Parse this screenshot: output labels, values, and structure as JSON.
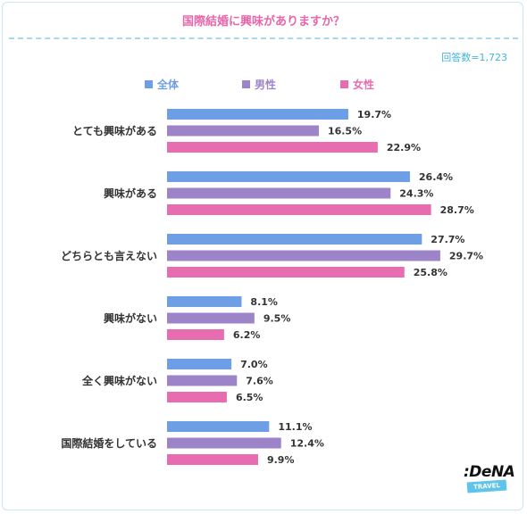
{
  "chart_data": {
    "type": "bar",
    "orientation": "horizontal",
    "title": "国際結婚に興味がありますか？",
    "note": "回答数=1,723",
    "categories": [
      "とても興味がある",
      "興味がある",
      "どちらとも言えない",
      "興味がない",
      "全く興味がない",
      "国際結婚をしている"
    ],
    "series": [
      {
        "name": "全体",
        "color": "#6e9ee5",
        "values": [
          19.7,
          26.4,
          27.7,
          8.1,
          7.0,
          11.1
        ],
        "labels": [
          "19.7%",
          "26.4%",
          "27.7%",
          "8.1%",
          "7.0%",
          "11.1%"
        ]
      },
      {
        "name": "男性",
        "color": "#9d84c8",
        "values": [
          16.5,
          24.3,
          29.7,
          9.5,
          7.6,
          12.4
        ],
        "labels": [
          "16.5%",
          "24.3%",
          "29.7%",
          "9.5%",
          "7.6%",
          "12.4%"
        ]
      },
      {
        "name": "女性",
        "color": "#e76db0",
        "values": [
          22.9,
          28.7,
          25.8,
          6.2,
          6.5,
          9.9
        ],
        "labels": [
          "22.9%",
          "28.7%",
          "25.8%",
          "6.2%",
          "6.5%",
          "9.9%"
        ]
      }
    ],
    "legend": "top",
    "grid": false
  },
  "logo": {
    "brand": ":DeNA",
    "tag": "TRAVEL"
  }
}
